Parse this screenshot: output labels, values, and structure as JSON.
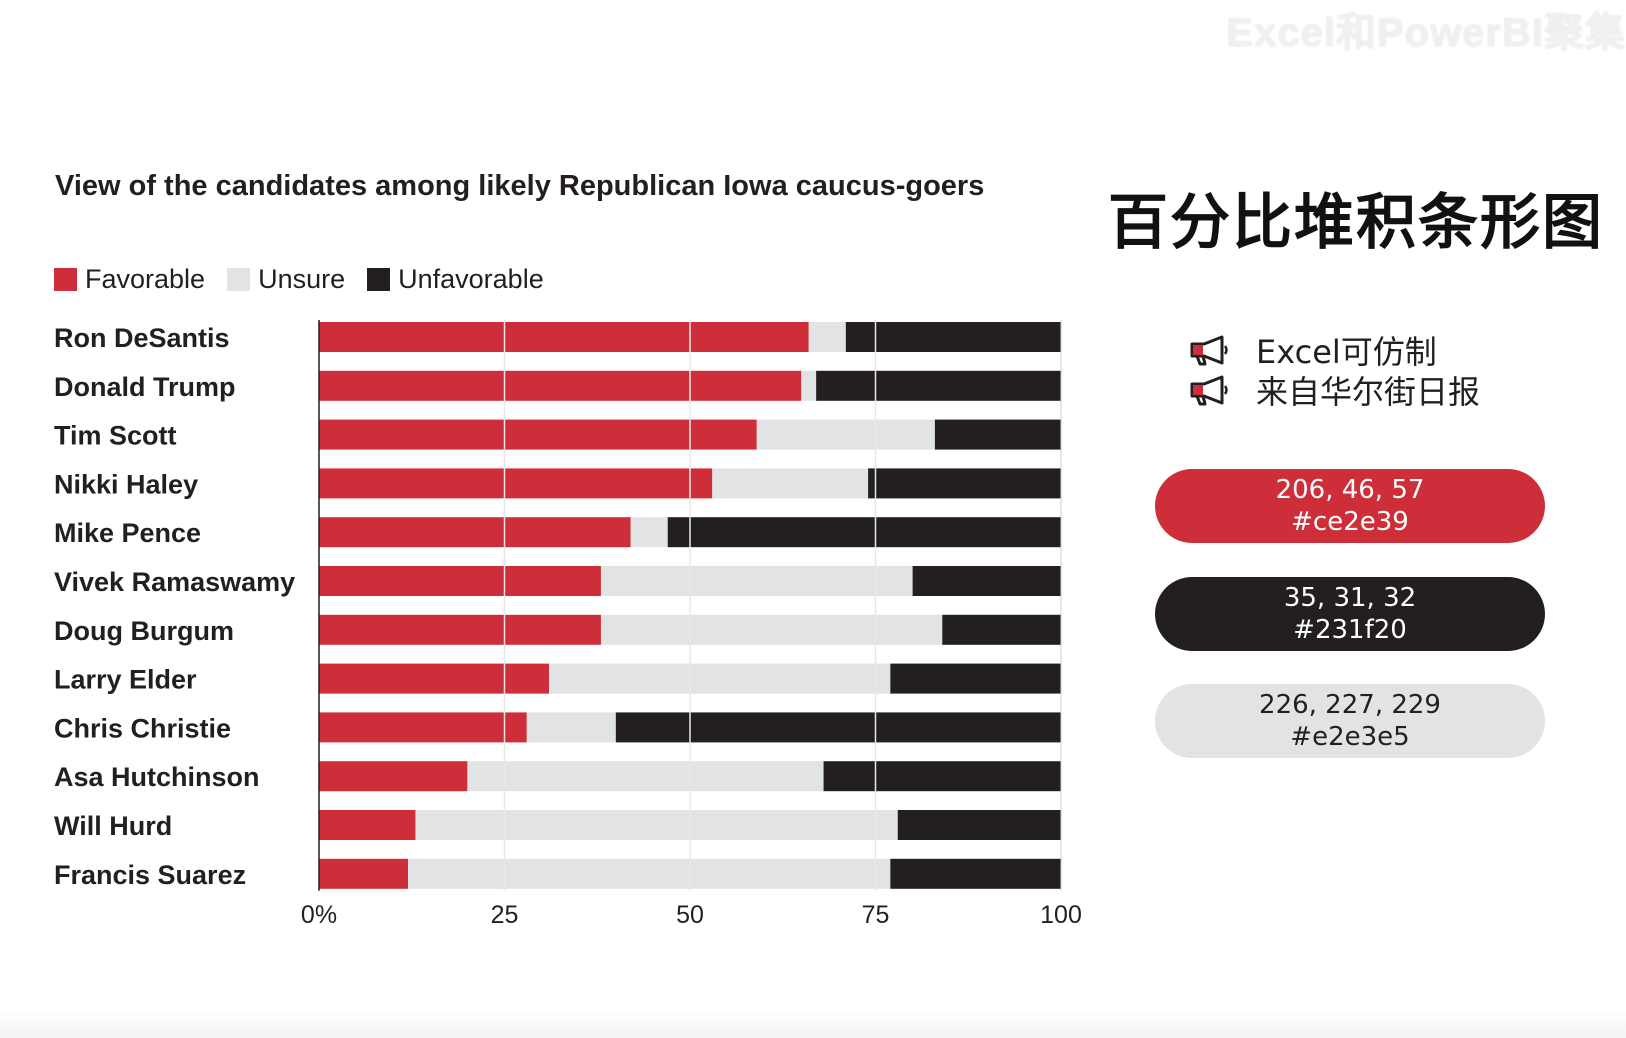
{
  "watermark": "Excel和PowerBI聚集",
  "heading": "百分比堆积条形图",
  "notes": [
    {
      "icon": "megaphone-icon",
      "text": "Excel可仿制"
    },
    {
      "icon": "megaphone-icon",
      "text": "来自华尔街日报"
    }
  ],
  "swatches": [
    {
      "rgb": "206, 46, 57",
      "hex": "#ce2e39",
      "bg": "#ce2e39",
      "fg": "#ffffff"
    },
    {
      "rgb": "35, 31, 32",
      "hex": "#231f20",
      "bg": "#231f20",
      "fg": "#ffffff"
    },
    {
      "rgb": "226, 227, 229",
      "hex": "#e2e3e5",
      "bg": "#e2e3e5",
      "fg": "#231f20"
    }
  ],
  "colors": {
    "favorable": "#ce2e39",
    "unsure": "#e2e3e5",
    "unfavorable": "#231f20"
  },
  "chart_data": {
    "type": "bar",
    "orientation": "horizontal",
    "stacked": "percent",
    "title": "View of the candidates among likely Republican Iowa caucus-goers",
    "categories": [
      "Ron DeSantis",
      "Donald Trump",
      "Tim Scott",
      "Nikki Haley",
      "Mike Pence",
      "Vivek Ramaswamy",
      "Doug Burgum",
      "Larry Elder",
      "Chris Christie",
      "Asa Hutchinson",
      "Will Hurd",
      "Francis Suarez"
    ],
    "series": [
      {
        "name": "Favorable",
        "color": "#ce2e39",
        "values": [
          66,
          65,
          59,
          53,
          42,
          38,
          38,
          31,
          28,
          20,
          13,
          12
        ]
      },
      {
        "name": "Unsure",
        "color": "#e2e3e5",
        "values": [
          5,
          2,
          24,
          21,
          5,
          42,
          46,
          46,
          12,
          48,
          65,
          65
        ]
      },
      {
        "name": "Unfavorable",
        "color": "#231f20",
        "values": [
          29,
          33,
          17,
          26,
          53,
          20,
          16,
          23,
          60,
          32,
          22,
          23
        ]
      }
    ],
    "xlim": [
      0,
      100
    ],
    "xticks": [
      "0%",
      "25",
      "50",
      "75",
      "100"
    ],
    "grid": true,
    "legend": "top-left"
  }
}
